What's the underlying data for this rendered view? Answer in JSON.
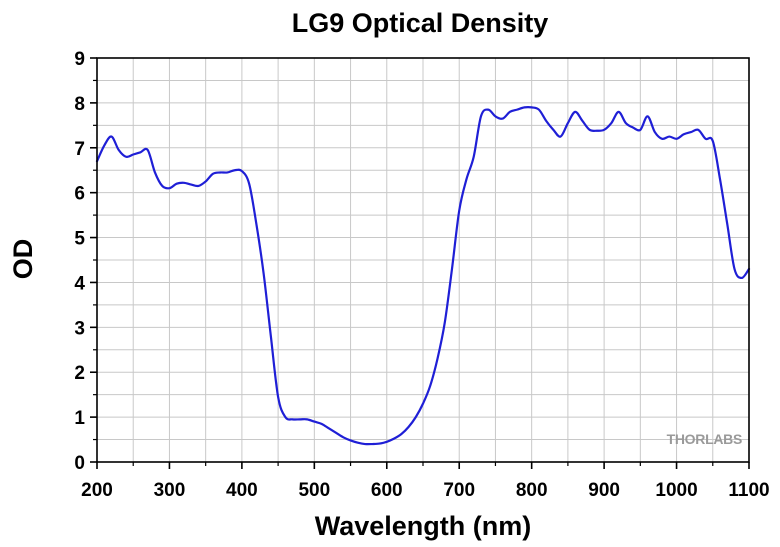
{
  "logo": {
    "brand": "THORLABS"
  },
  "chart_data": {
    "type": "line",
    "title": "LG9 Optical Density",
    "xlabel": "Wavelength (nm)",
    "ylabel": "OD",
    "xlim": [
      200,
      1100
    ],
    "ylim": [
      0,
      9
    ],
    "xticks": [
      200,
      300,
      400,
      500,
      600,
      700,
      800,
      900,
      1000,
      1100
    ],
    "yticks": [
      0,
      1,
      2,
      3,
      4,
      5,
      6,
      7,
      8,
      9
    ],
    "grid": true,
    "legend": "none",
    "colors": {
      "line": "#1f1fd6",
      "grid": "#c8c8c8",
      "axes": "#000000"
    },
    "series": [
      {
        "x": [
          200,
          210,
          220,
          230,
          240,
          250,
          260,
          270,
          280,
          290,
          300,
          310,
          320,
          330,
          340,
          350,
          360,
          370,
          380,
          390,
          400,
          410,
          420,
          430,
          440,
          450,
          460,
          470,
          480,
          490,
          500,
          510,
          520,
          530,
          540,
          550,
          560,
          570,
          580,
          590,
          600,
          610,
          620,
          630,
          640,
          650,
          660,
          670,
          680,
          690,
          700,
          710,
          720,
          730,
          740,
          750,
          760,
          770,
          780,
          790,
          800,
          810,
          820,
          830,
          840,
          850,
          860,
          870,
          880,
          890,
          900,
          910,
          920,
          930,
          940,
          950,
          960,
          970,
          980,
          990,
          1000,
          1010,
          1020,
          1030,
          1040,
          1050,
          1060,
          1070,
          1080,
          1090,
          1100
        ],
        "y": [
          6.7,
          7.05,
          7.25,
          6.95,
          6.8,
          6.85,
          6.9,
          6.95,
          6.45,
          6.15,
          6.1,
          6.2,
          6.22,
          6.18,
          6.15,
          6.25,
          6.42,
          6.45,
          6.45,
          6.5,
          6.48,
          6.2,
          5.3,
          4.2,
          2.8,
          1.45,
          1.0,
          0.95,
          0.95,
          0.95,
          0.9,
          0.85,
          0.75,
          0.65,
          0.55,
          0.48,
          0.43,
          0.4,
          0.4,
          0.41,
          0.45,
          0.52,
          0.62,
          0.78,
          1.0,
          1.3,
          1.7,
          2.3,
          3.1,
          4.3,
          5.6,
          6.3,
          6.8,
          7.7,
          7.85,
          7.7,
          7.65,
          7.8,
          7.85,
          7.9,
          7.9,
          7.85,
          7.6,
          7.4,
          7.25,
          7.55,
          7.8,
          7.6,
          7.4,
          7.38,
          7.4,
          7.55,
          7.8,
          7.55,
          7.45,
          7.4,
          7.7,
          7.35,
          7.2,
          7.25,
          7.2,
          7.3,
          7.35,
          7.4,
          7.2,
          7.15,
          6.3,
          5.3,
          4.3,
          4.1,
          4.3
        ]
      }
    ]
  }
}
